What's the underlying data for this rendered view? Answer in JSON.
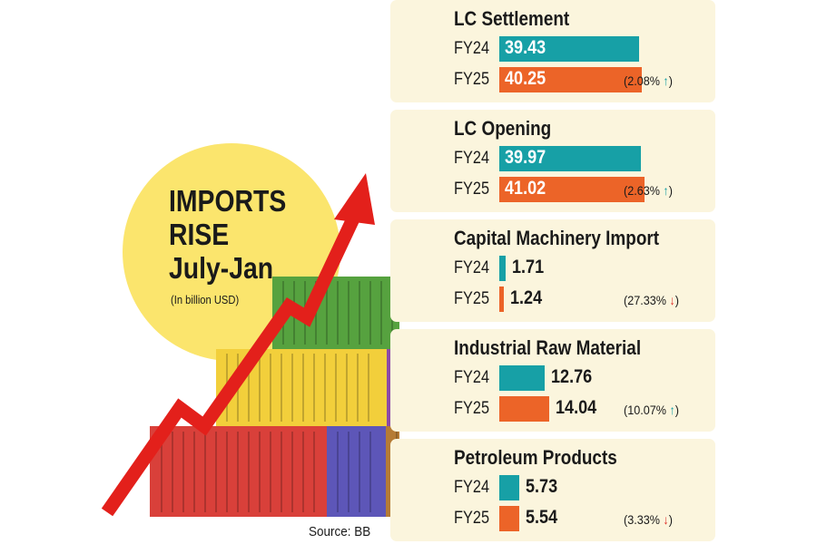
{
  "headline": [
    "IMPORTS",
    "RISE",
    "July-Jan"
  ],
  "unit_note": "(In billion USD)",
  "source": "Source: BB",
  "colors": {
    "fy24": "#17a0a6",
    "fy25": "#ec6428",
    "arrow_up": "#17a0a6",
    "arrow_down": "#e0302a",
    "panel": "#fbf5dd"
  },
  "chart_data": {
    "type": "bar",
    "orientation": "horizontal",
    "unit": "billion USD",
    "series_names": [
      "FY24",
      "FY25"
    ],
    "panels": [
      {
        "title": "LC Settlement",
        "rows": [
          {
            "label": "FY24",
            "value": 39.43,
            "text": "39.43"
          },
          {
            "label": "FY25",
            "value": 40.25,
            "text": "40.25"
          }
        ],
        "change": {
          "text": "(2.08%",
          "direction": "up"
        }
      },
      {
        "title": "LC Opening",
        "rows": [
          {
            "label": "FY24",
            "value": 39.97,
            "text": "39.97"
          },
          {
            "label": "FY25",
            "value": 41.02,
            "text": "41.02"
          }
        ],
        "change": {
          "text": "(2.63%",
          "direction": "up"
        }
      },
      {
        "title": "Capital Machinery Import",
        "rows": [
          {
            "label": "FY24",
            "value": 1.71,
            "text": "1.71"
          },
          {
            "label": "FY25",
            "value": 1.24,
            "text": "1.24"
          }
        ],
        "change": {
          "text": "(27.33%",
          "direction": "down"
        }
      },
      {
        "title": "Industrial Raw Material",
        "rows": [
          {
            "label": "FY24",
            "value": 12.76,
            "text": "12.76"
          },
          {
            "label": "FY25",
            "value": 14.04,
            "text": "14.04"
          }
        ],
        "change": {
          "text": "(10.07%",
          "direction": "up"
        }
      },
      {
        "title": "Petroleum Products",
        "rows": [
          {
            "label": "FY24",
            "value": 5.73,
            "text": "5.73"
          },
          {
            "label": "FY25",
            "value": 5.54,
            "text": "5.54"
          }
        ],
        "change": {
          "text": "(3.33%",
          "direction": "down"
        }
      }
    ]
  }
}
